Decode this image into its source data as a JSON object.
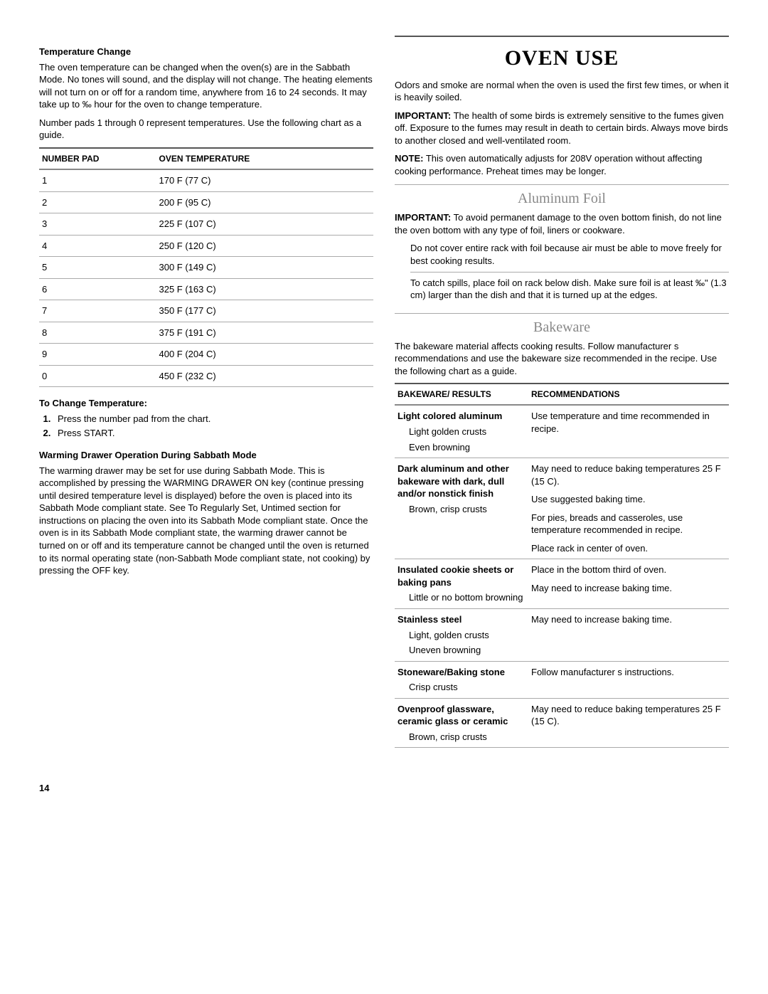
{
  "left": {
    "tempChange": {
      "heading": "Temperature Change",
      "p1": "The oven temperature can be changed when the oven(s) are in the Sabbath Mode. No tones will sound, and the display will not change. The heating elements will not turn on or off for a random time, anywhere from 16 to 24 seconds. It may take up to ‰ hour for the oven to change temperature.",
      "p2": "Number pads 1 through 0 represent temperatures. Use the following chart as a guide."
    },
    "tempTable": {
      "col1": "NUMBER PAD",
      "col2": "OVEN TEMPERATURE",
      "rows": [
        {
          "pad": "1",
          "temp": "170 F (77 C)"
        },
        {
          "pad": "2",
          "temp": "200 F (95 C)"
        },
        {
          "pad": "3",
          "temp": "225 F (107 C)"
        },
        {
          "pad": "4",
          "temp": "250 F (120 C)"
        },
        {
          "pad": "5",
          "temp": "300 F (149 C)"
        },
        {
          "pad": "6",
          "temp": "325 F (163 C)"
        },
        {
          "pad": "7",
          "temp": "350 F (177 C)"
        },
        {
          "pad": "8",
          "temp": "375 F (191 C)"
        },
        {
          "pad": "9",
          "temp": "400 F (204 C)"
        },
        {
          "pad": "0",
          "temp": "450 F (232 C)"
        }
      ]
    },
    "toChange": {
      "heading": "To Change Temperature:",
      "steps": [
        "Press the number pad from the chart.",
        "Press START."
      ]
    },
    "warming": {
      "heading": "Warming Drawer Operation During Sabbath Mode",
      "body": "The warming drawer may be set for use during Sabbath Mode. This is accomplished by pressing the WARMING DRAWER ON key (continue pressing until desired temperature level is displayed) before the oven is placed into its Sabbath Mode compliant state. See  To Regularly Set, Untimed  section for instructions on placing the oven into its Sabbath Mode compliant state. Once the oven is in its Sabbath Mode compliant state, the warming drawer cannot be turned on or off and its temperature cannot be changed until the oven is returned to its normal operating state (non-Sabbath Mode compliant state, not cooking) by pressing the OFF key."
    }
  },
  "right": {
    "title": "OVEN USE",
    "intro": {
      "p1": "Odors and smoke are normal when the oven is used the first few times, or when it is heavily soiled.",
      "important_label": "IMPORTANT:",
      "important": " The health of some birds is extremely sensitive to the fumes given off. Exposure to the fumes may result in death to certain birds. Always move birds to another closed and well-ventilated room.",
      "note_label": "NOTE:",
      "note": " This oven automatically adjusts for 208V operation without affecting cooking performance. Preheat times may be longer."
    },
    "foil": {
      "heading": "Aluminum Foil",
      "important_label": "IMPORTANT:",
      "important": " To avoid permanent damage to the oven bottom finish, do not line the oven bottom with any type of foil, liners or cookware.",
      "bullets": [
        "Do not cover entire rack with foil because air must be able to move freely for best cooking results.",
        "To catch spills, place foil on rack below dish. Make sure foil is at least ‰\" (1.3 cm) larger than the dish and that it is turned up at the edges."
      ]
    },
    "bakeware": {
      "heading": "Bakeware",
      "intro": "The bakeware material affects cooking results. Follow manufacturer s recommendations and use the bakeware size recommended in the recipe. Use the following chart as a guide.",
      "col1": "BAKEWARE/ RESULTS",
      "col2": "RECOMMENDATIONS",
      "rows": [
        {
          "name": "Light colored aluminum",
          "results": [
            "Light golden crusts",
            "Even browning"
          ],
          "recs": [
            "Use temperature and time recommended in recipe."
          ]
        },
        {
          "name": "Dark aluminum and other bakeware with dark, dull and/or nonstick finish",
          "results": [
            "Brown, crisp crusts"
          ],
          "recs": [
            "May need to reduce baking temperatures 25 F (15 C).",
            "Use suggested baking time.",
            "For pies, breads and casseroles, use temperature recommended in recipe.",
            "Place rack in center of oven."
          ]
        },
        {
          "name": "Insulated cookie sheets or baking pans",
          "results": [
            "Little or no bottom browning"
          ],
          "recs": [
            "Place in the bottom third of oven.",
            "May need to increase baking time."
          ]
        },
        {
          "name": "Stainless steel",
          "results": [
            "Light, golden crusts",
            "Uneven browning"
          ],
          "recs": [
            "May need to increase baking time."
          ]
        },
        {
          "name": "Stoneware/Baking stone",
          "results": [
            "Crisp crusts"
          ],
          "recs": [
            "Follow manufacturer s instructions."
          ]
        },
        {
          "name": "Ovenproof glassware, ceramic glass or ceramic",
          "results": [
            "Brown, crisp crusts"
          ],
          "recs": [
            "May need to reduce baking temperatures 25 F (15 C)."
          ]
        }
      ]
    }
  },
  "pageNumber": "14"
}
